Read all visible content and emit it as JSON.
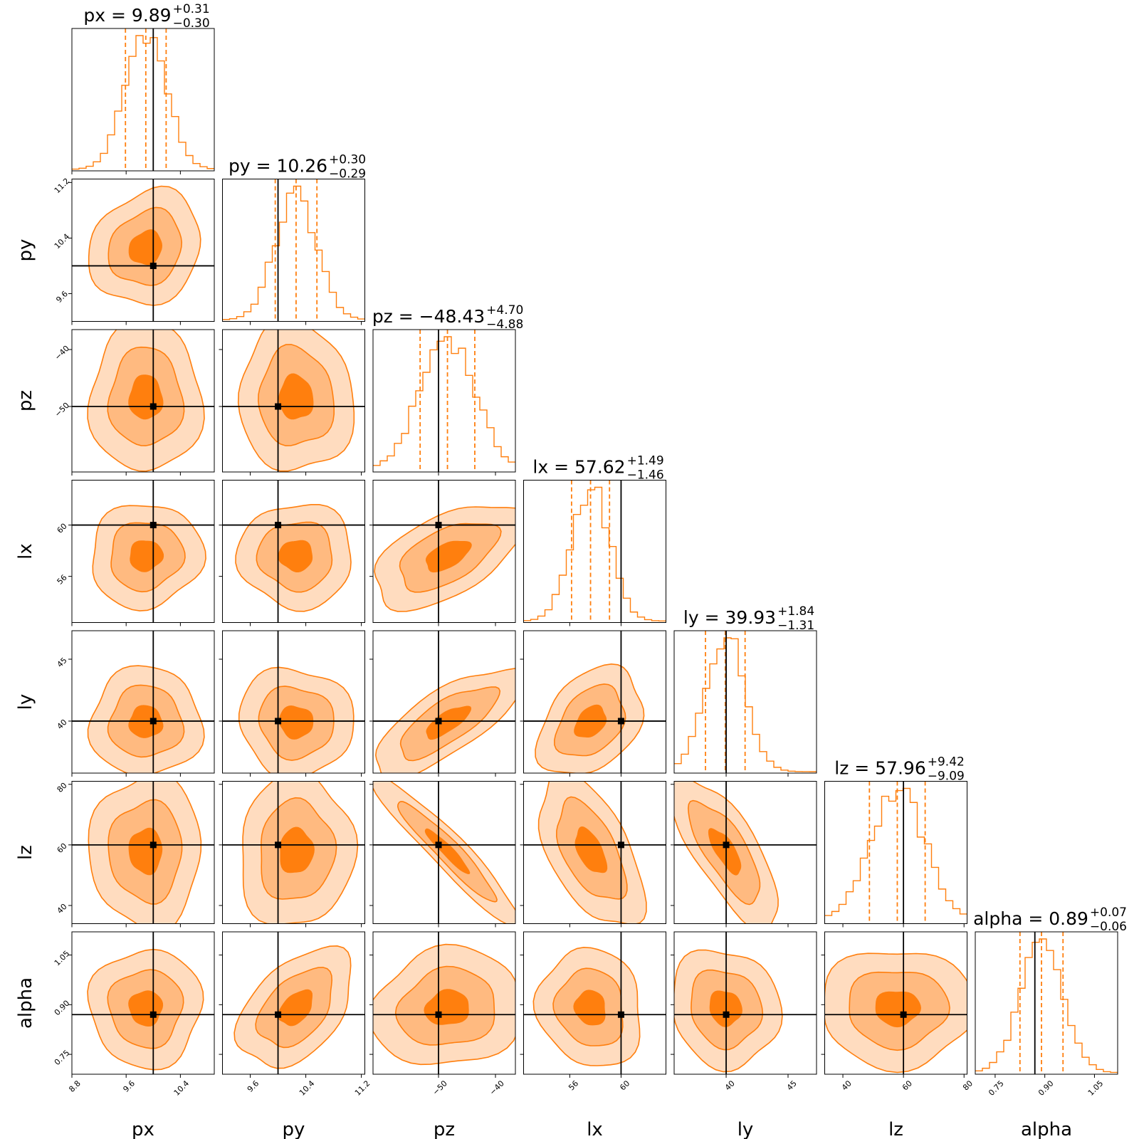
{
  "chart_data": {
    "type": "corner",
    "params": [
      {
        "name": "px",
        "truth": 10.0,
        "median": 9.89,
        "plus": "0.31",
        "minus": "0.30",
        "range": [
          8.8,
          10.9
        ],
        "ticks": [
          8.8,
          9.6,
          10.4
        ],
        "tick_labels": [
          "8.8",
          "9.6",
          "10.4"
        ],
        "sigma": 0.3
      },
      {
        "name": "py",
        "truth": 10.0,
        "median": 10.26,
        "plus": "0.30",
        "minus": "0.29",
        "range": [
          9.2,
          11.25
        ],
        "ticks": [
          9.6,
          10.4,
          11.2
        ],
        "tick_labels": [
          "9.6",
          "10.4",
          "11.2"
        ],
        "sigma": 0.3
      },
      {
        "name": "pz",
        "truth": -50.0,
        "median": -48.43,
        "plus": "4.70",
        "minus": "4.88",
        "range": [
          -61.5,
          -36.5
        ],
        "ticks": [
          -50,
          -40
        ],
        "tick_labels": [
          "−50",
          "−40"
        ],
        "sigma": 4.8
      },
      {
        "name": "lx",
        "truth": 60.0,
        "median": 57.62,
        "plus": "1.49",
        "minus": "1.46",
        "range": [
          52.4,
          63.5
        ],
        "ticks": [
          56,
          60
        ],
        "tick_labels": [
          "56",
          "60"
        ],
        "sigma": 1.48
      },
      {
        "name": "ly",
        "truth": 40.0,
        "median": 39.93,
        "plus": "1.84",
        "minus": "1.31",
        "range": [
          35.8,
          47.3
        ],
        "ticks": [
          40,
          45
        ],
        "tick_labels": [
          "40",
          "45"
        ],
        "sigma": 1.6
      },
      {
        "name": "lz",
        "truth": 60.0,
        "median": 57.96,
        "plus": "9.42",
        "minus": "9.09",
        "range": [
          34,
          81
        ],
        "ticks": [
          40,
          60,
          80
        ],
        "tick_labels": [
          "40",
          "60",
          "80"
        ],
        "sigma": 9.2
      },
      {
        "name": "alpha",
        "truth": 0.87,
        "median": 0.89,
        "plus": "0.07",
        "minus": "0.06",
        "range": [
          0.69,
          1.12
        ],
        "ticks": [
          0.75,
          0.9,
          1.05
        ],
        "tick_labels": [
          "0.75",
          "0.90",
          "1.05"
        ],
        "sigma": 0.065
      }
    ],
    "correlations": [
      [
        0,
        0,
        0,
        0,
        0,
        0,
        0
      ],
      [
        0.15,
        0,
        0,
        0,
        0,
        0,
        0
      ],
      [
        0,
        -0.05,
        0,
        0,
        0,
        0,
        0
      ],
      [
        0.05,
        0,
        0.55,
        0,
        0,
        0,
        0
      ],
      [
        0,
        -0.05,
        0.75,
        0.35,
        0,
        0,
        0
      ],
      [
        0,
        0.05,
        -0.95,
        -0.55,
        -0.75,
        0,
        0
      ],
      [
        0,
        0.45,
        0.1,
        -0.1,
        -0.1,
        0,
        0
      ]
    ],
    "colors": {
      "accent": "#ff7f0e",
      "fill_1": "#ffdcbf",
      "fill_2": "#ffba80",
      "fill_3": "#ff7f0e",
      "truth": "#000000"
    }
  }
}
